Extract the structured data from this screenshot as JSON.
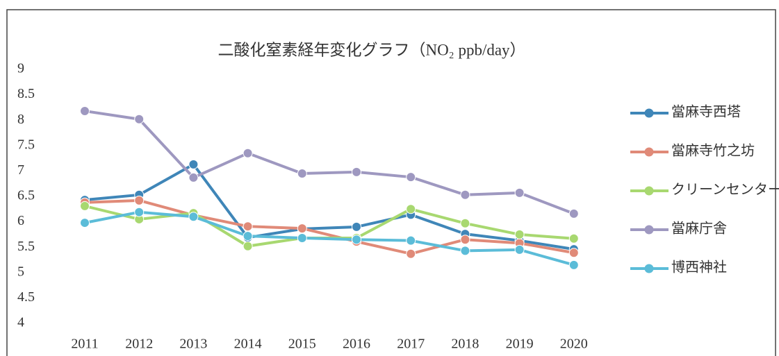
{
  "chart_data": {
    "type": "line",
    "title": "二酸化窒素経年変化グラフ（NO₂ ppb/day）",
    "categories": [
      "2011",
      "2012",
      "2013",
      "2014",
      "2015",
      "2016",
      "2017",
      "2018",
      "2019",
      "2020"
    ],
    "series": [
      {
        "name": "當麻寺西塔",
        "color": "#3f86b8",
        "values": [
          6.43,
          6.53,
          7.13,
          5.69,
          5.86,
          5.9,
          6.14,
          5.76,
          5.63,
          5.46
        ]
      },
      {
        "name": "當麻寺竹之坊",
        "color": "#e08a78",
        "values": [
          6.38,
          6.42,
          6.13,
          5.91,
          5.87,
          5.61,
          5.37,
          5.65,
          5.58,
          5.39
        ]
      },
      {
        "name": "クリーンセンター",
        "color": "#a8d870",
        "values": [
          6.31,
          6.05,
          6.17,
          5.52,
          5.68,
          5.68,
          6.25,
          5.97,
          5.75,
          5.67
        ]
      },
      {
        "name": "當麻庁舎",
        "color": "#9e98c0",
        "values": [
          8.18,
          8.02,
          6.87,
          7.35,
          6.95,
          6.98,
          6.88,
          6.53,
          6.57,
          6.16
        ]
      },
      {
        "name": "博西神社",
        "color": "#5bbcd8",
        "values": [
          5.98,
          6.19,
          6.1,
          5.72,
          5.68,
          5.65,
          5.63,
          5.43,
          5.45,
          5.15
        ]
      }
    ],
    "ylim": [
      4,
      9
    ],
    "yticks": [
      4,
      4.5,
      5,
      5.5,
      6,
      6.5,
      7,
      7.5,
      8,
      8.5,
      9
    ],
    "grid": false,
    "legend": "right"
  }
}
